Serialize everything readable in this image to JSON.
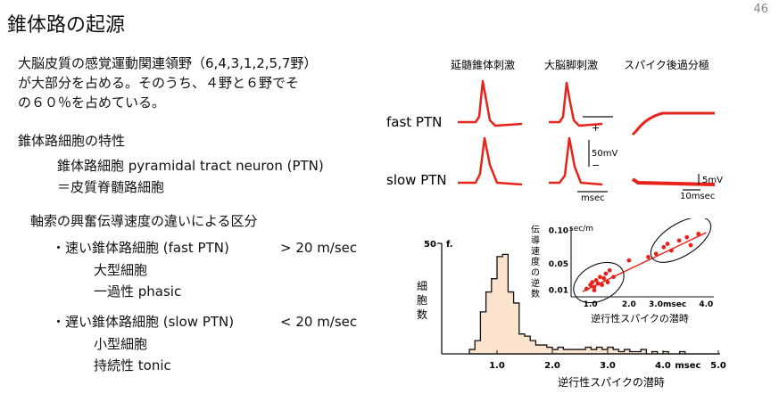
{
  "slide": {
    "title": "錐体路の起源",
    "page_number": "46"
  },
  "intro": {
    "lines": [
      "大脳皮質の感覚運動関連領野（6,4,3,1,2,5,7野）",
      "が大部分を占める。そのうち、４野と６野でそ",
      "の６０％を占めている。"
    ]
  },
  "cells": {
    "heading": "錐体路細胞の特性",
    "line1": "錐体路細胞 pyramidal tract neuron (PTN)",
    "line2": "＝皮質脊髄路細胞"
  },
  "classification": {
    "heading": "軸索の興奮伝導速度の違いによる区分",
    "fast": {
      "name": "・速い錐体路細胞 (fast PTN)",
      "speed": "> 20 m/sec",
      "size": "大型細胞",
      "type": "一過性 phasic"
    },
    "slow": {
      "name": "・遅い錐体路細胞 (slow PTN)",
      "speed": "< 20 m/sec",
      "size": "小型細胞",
      "type": "持続性 tonic"
    }
  },
  "figure": {
    "columns": [
      "延髄錐体刺激",
      "大脳脚刺激",
      "スパイク後過分極"
    ],
    "rows": [
      "fast PTN",
      "slow PTN"
    ],
    "scale_plus": "+",
    "scale_50mv": "50mV",
    "scale_minus": "−",
    "scale_msec": "msec",
    "scale_5mv": "5mV",
    "scale_10msec": "10msec",
    "trace_color": "#e8231a"
  },
  "chart_data": {
    "type": "bar",
    "title": "",
    "xlabel": "逆行性スパイクの潜時",
    "ylabel": "細胞数",
    "y_tick_label": "50",
    "y_unit_label": "f.",
    "x_ticks": [
      "1.0",
      "2.0",
      "3.0",
      "4.0",
      "msec",
      "5.0"
    ],
    "xlim": [
      0,
      5.0
    ],
    "ylim": [
      0,
      50
    ],
    "bin_width": 0.1,
    "bins_start": [
      0.5,
      0.6,
      0.7,
      0.8,
      0.9,
      1.0,
      1.1,
      1.2,
      1.3,
      1.4,
      1.5,
      1.6,
      1.7,
      1.8,
      1.9,
      2.0,
      2.1,
      2.2,
      2.3,
      2.4,
      2.5,
      2.6,
      2.7,
      2.8,
      2.9,
      3.0,
      3.1,
      3.2,
      3.3,
      3.4,
      3.5,
      3.6,
      3.7,
      3.8,
      3.9,
      4.0,
      4.1,
      4.2,
      4.3,
      4.4,
      4.5,
      4.6,
      4.7,
      4.8,
      4.9
    ],
    "values": [
      2,
      6,
      19,
      28,
      34,
      44,
      45,
      28,
      23,
      9,
      8,
      6,
      4,
      4,
      3,
      2,
      3,
      2,
      2,
      2,
      2,
      3,
      2,
      3,
      2,
      3,
      2,
      1,
      2,
      1,
      1,
      2,
      0,
      1,
      0,
      1,
      0,
      0,
      1,
      0,
      0,
      0,
      0,
      0,
      0
    ],
    "fill_color": "#fbe3cd",
    "inset": {
      "type": "scatter",
      "xlabel": "逆行性スパイクの潜時",
      "ylabel": "伝導速度の逆数",
      "y_unit": "sec/m",
      "y_ticks": [
        "0.10",
        "0.05",
        "0.01"
      ],
      "x_ticks": [
        "1.0",
        "2.0",
        "3.0msec",
        "4.0"
      ],
      "y_tick_values": [
        0.1,
        0.05,
        0.01
      ],
      "x_tick_values": [
        1.0,
        2.0,
        3.0,
        4.0
      ],
      "xlim": [
        0.5,
        4.2
      ],
      "ylim": [
        0.0,
        0.105
      ],
      "points": [
        {
          "x": 0.9,
          "y": 0.012
        },
        {
          "x": 1.0,
          "y": 0.018
        },
        {
          "x": 1.05,
          "y": 0.022
        },
        {
          "x": 1.1,
          "y": 0.015
        },
        {
          "x": 1.15,
          "y": 0.025
        },
        {
          "x": 1.2,
          "y": 0.02
        },
        {
          "x": 1.25,
          "y": 0.03
        },
        {
          "x": 1.3,
          "y": 0.018
        },
        {
          "x": 1.35,
          "y": 0.028
        },
        {
          "x": 1.4,
          "y": 0.035
        },
        {
          "x": 1.45,
          "y": 0.022
        },
        {
          "x": 1.5,
          "y": 0.04
        },
        {
          "x": 1.1,
          "y": 0.01
        },
        {
          "x": 1.6,
          "y": 0.03
        },
        {
          "x": 2.0,
          "y": 0.055
        },
        {
          "x": 2.5,
          "y": 0.06
        },
        {
          "x": 2.9,
          "y": 0.075
        },
        {
          "x": 3.0,
          "y": 0.08
        },
        {
          "x": 3.1,
          "y": 0.07
        },
        {
          "x": 3.3,
          "y": 0.085
        },
        {
          "x": 3.5,
          "y": 0.09
        },
        {
          "x": 3.6,
          "y": 0.078
        },
        {
          "x": 3.8,
          "y": 0.095
        },
        {
          "x": 2.7,
          "y": 0.065
        }
      ],
      "fit_line": [
        [
          0.8,
          0.008
        ],
        [
          4.0,
          0.097
        ]
      ],
      "point_color": "#e8231a"
    }
  }
}
